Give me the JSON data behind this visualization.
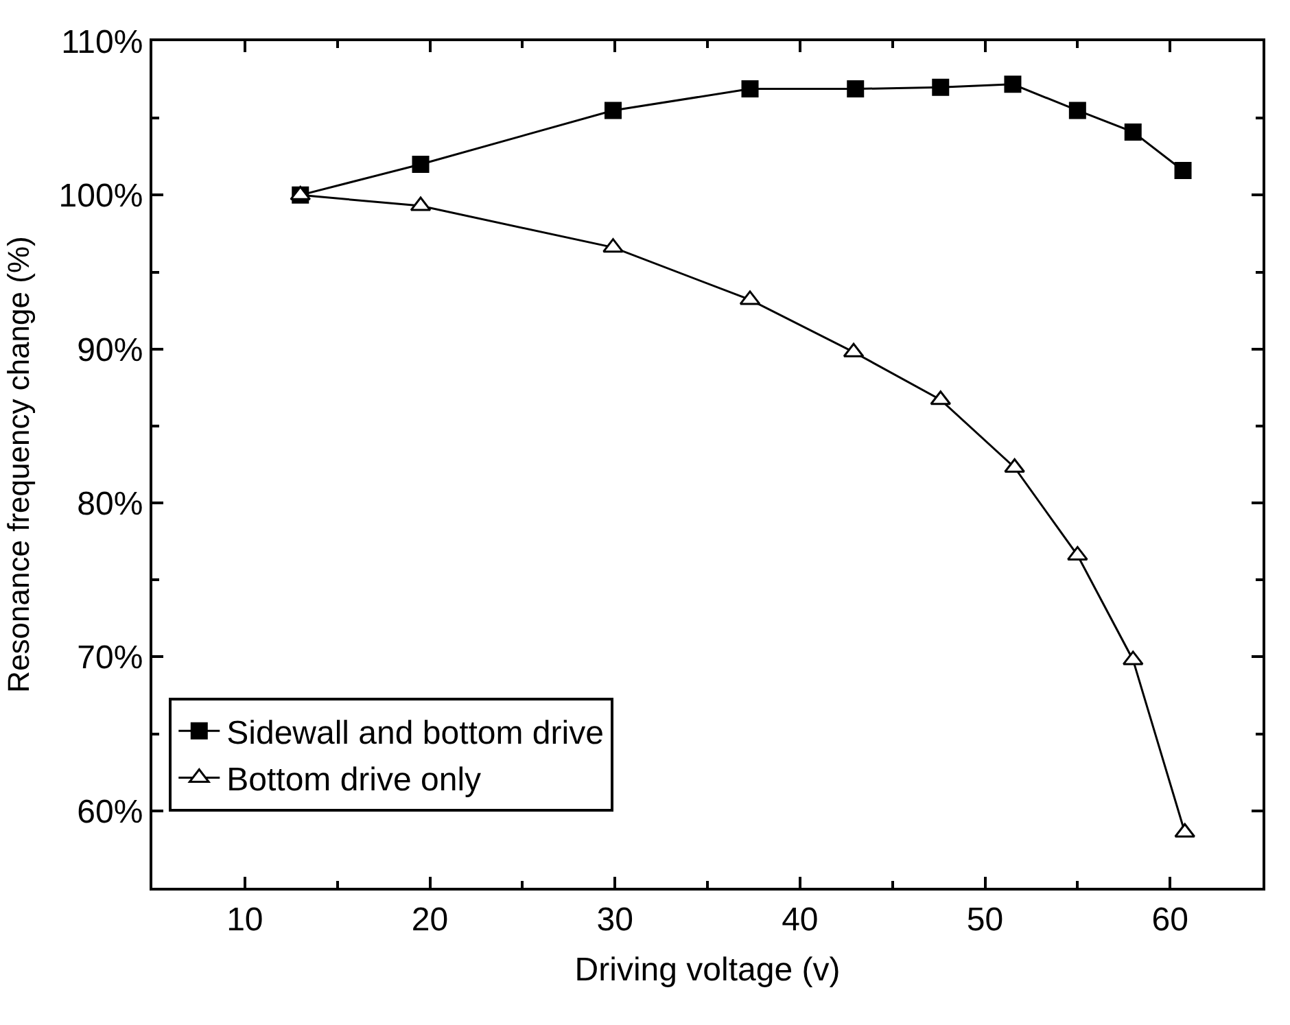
{
  "chart_data": {
    "type": "line",
    "xlabel": "Driving voltage (v)",
    "ylabel": "Resonance frequency change (%)",
    "series": [
      {
        "name": "Sidewall and bottom drive",
        "color": "#000000",
        "marker": "square",
        "x": [
          13.0,
          19.5,
          29.9,
          37.3,
          43.0,
          47.6,
          51.5,
          55.0,
          58.0,
          60.7
        ],
        "values": [
          100.0,
          102.0,
          105.5,
          106.9,
          106.9,
          107.0,
          107.2,
          105.5,
          104.1,
          101.6
        ]
      },
      {
        "name": "Bottom drive only",
        "color": "#000000",
        "marker": "triangle",
        "x": [
          13.0,
          19.5,
          29.9,
          37.3,
          42.9,
          47.6,
          51.6,
          55.0,
          58.0,
          60.8
        ],
        "values": [
          100.0,
          99.3,
          96.6,
          93.2,
          89.8,
          86.7,
          82.3,
          76.6,
          69.8,
          58.6
        ]
      }
    ],
    "xlim": [
      5,
      65
    ],
    "ylim": [
      55,
      110
    ],
    "xticks": [
      10,
      {
        "value": 15,
        "label": null
      },
      20,
      {
        "value": 25,
        "label": null
      },
      30,
      {
        "value": 35,
        "label": null
      },
      40,
      {
        "value": 45,
        "label": null
      },
      50,
      {
        "value": 55,
        "label": null
      },
      60
    ],
    "yticks": [
      {
        "value": 60,
        "label": "60%"
      },
      {
        "value": 65,
        "label": null
      },
      {
        "value": 70,
        "label": "70%"
      },
      {
        "value": 75,
        "label": null
      },
      {
        "value": 80,
        "label": "80%"
      },
      {
        "value": 85,
        "label": null
      },
      {
        "value": 90,
        "label": "90%"
      },
      {
        "value": 95,
        "label": null
      },
      {
        "value": 100,
        "label": "100%"
      },
      {
        "value": 105,
        "label": null
      },
      {
        "value": 110,
        "label": "110%"
      }
    ],
    "legend": "bottom left",
    "line_style": "solid"
  }
}
